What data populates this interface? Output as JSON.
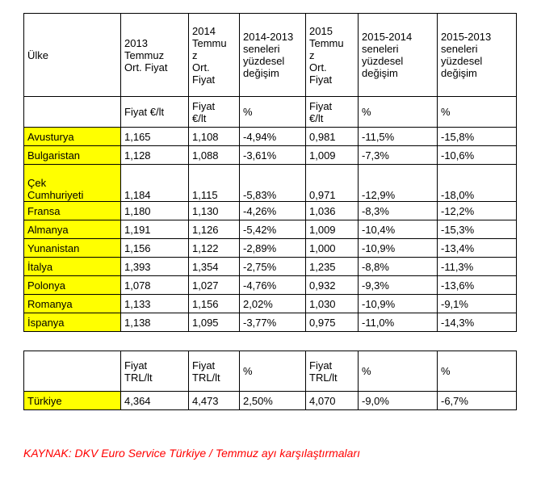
{
  "header": {
    "col0": "Ülke",
    "col1": "2013\nTemmuz\nOrt. Fiyat",
    "col2": "2014\nTemmu\nz\nOrt.\nFiyat",
    "col3": "2014-2013\nseneleri\nyüzdesel\ndeğişim",
    "col4": "2015\nTemmu\nz\nOrt.\nFiyat",
    "col5": "2015-2014\nseneleri\nyüzdesel\ndeğişim",
    "col6": "2015-2013\nseneleri\nyüzdesel\ndeğişim"
  },
  "units_eur": [
    "Fiyat €/lt",
    "Fiyat\n€/lt",
    "%",
    "Fiyat\n€/lt",
    "%",
    "%"
  ],
  "rows": [
    {
      "country": "Avusturya",
      "p2013": "1,165",
      "p2014": "1,108",
      "c1413": "-4,94%",
      "p2015": "0,981",
      "c1514": "-11,5%",
      "c1513": "-15,8%"
    },
    {
      "country": "Bulgaristan",
      "p2013": "1,128",
      "p2014": "1,088",
      "c1413": "-3,61%",
      "p2015": "1,009",
      "c1514": "-7,3%",
      "c1513": "-10,6%"
    },
    {
      "country": "Çek\nCumhuriyeti",
      "p2013": "1,184",
      "p2014": "1,115",
      "c1413": "-5,83%",
      "p2015": "0,971",
      "c1514": "-12,9%",
      "c1513": "-18,0%"
    },
    {
      "country": "Fransa",
      "p2013": "1,180",
      "p2014": "1,130",
      "c1413": "-4,26%",
      "p2015": "1,036",
      "c1514": "-8,3%",
      "c1513": "-12,2%"
    },
    {
      "country": "Almanya",
      "p2013": "1,191",
      "p2014": "1,126",
      "c1413": "-5,42%",
      "p2015": "1,009",
      "c1514": "-10,4%",
      "c1513": "-15,3%"
    },
    {
      "country": "Yunanistan",
      "p2013": "1,156",
      "p2014": "1,122",
      "c1413": "-2,89%",
      "p2015": "1,000",
      "c1514": "-10,9%",
      "c1513": "-13,4%"
    },
    {
      "country": "İtalya",
      "p2013": "1,393",
      "p2014": "1,354",
      "c1413": "-2,75%",
      "p2015": "1,235",
      "c1514": "-8,8%",
      "c1513": "-11,3%"
    },
    {
      "country": "Polonya",
      "p2013": "1,078",
      "p2014": "1,027",
      "c1413": "-4,76%",
      "p2015": "0,932",
      "c1514": "-9,3%",
      "c1513": "-13,6%"
    },
    {
      "country": "Romanya",
      "p2013": "1,133",
      "p2014": "1,156",
      "c1413": "2,02%",
      "p2015": "1,030",
      "c1514": "-10,9%",
      "c1513": "-9,1%"
    },
    {
      "country": "İspanya",
      "p2013": "1,138",
      "p2014": "1,095",
      "c1413": "-3,77%",
      "p2015": "0,975",
      "c1514": "-11,0%",
      "c1513": "-14,3%"
    }
  ],
  "units_trl": [
    "Fiyat\nTRL/lt",
    "Fiyat\nTRL/lt",
    "%",
    "Fiyat\nTRL/lt",
    "%",
    "%"
  ],
  "turkey": {
    "country": "Türkiye",
    "p2013": "4,364",
    "p2014": "4,473",
    "c1413": "2,50%",
    "p2015": "4,070",
    "c1514": "-9,0%",
    "c1513": "-6,7%"
  },
  "source": "KAYNAK: DKV Euro Service Türkiye / Temmuz ayı karşılaştırmaları",
  "colors": {
    "highlight": "#ffff00",
    "source_text": "#ff0000"
  }
}
